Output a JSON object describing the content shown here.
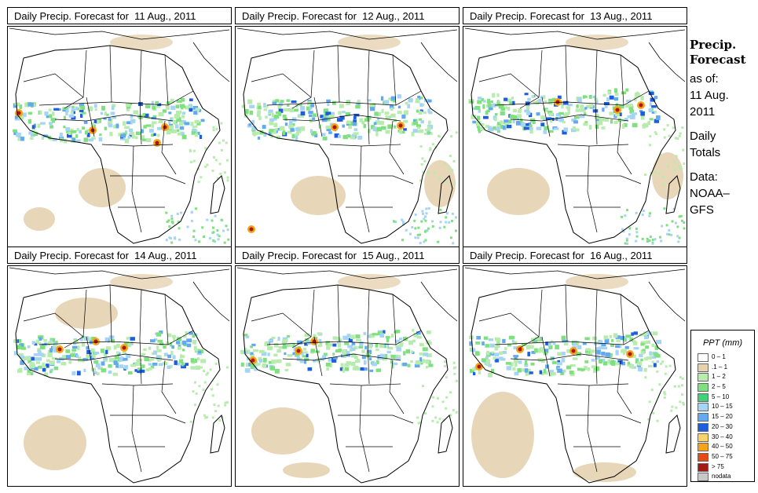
{
  "panels": [
    {
      "title": "Daily Precip. Forecast for  11 Aug., 2011"
    },
    {
      "title": "Daily Precip. Forecast for  12 Aug., 2011"
    },
    {
      "title": "Daily Precip. Forecast for  13 Aug., 2011"
    },
    {
      "title": "Daily Precip. Forecast for  14 Aug., 2011"
    },
    {
      "title": "Daily Precip. Forecast for  15 Aug., 2011"
    },
    {
      "title": "Daily Precip. Forecast for  16 Aug., 2011"
    }
  ],
  "side": {
    "title1": "Precip.",
    "title2": "Forecast",
    "asof": "as of:",
    "date1": "11 Aug.",
    "date2": "2011",
    "totals1": "Daily",
    "totals2": "Totals",
    "data1": "Data:",
    "data2": "NOAA–",
    "data3": "GFS"
  },
  "legend": {
    "title": "PPT (mm)",
    "items": [
      {
        "label": "0 – 1",
        "color": "#ffffff"
      },
      {
        "label": ".1 – 1",
        "color": "#e6d2b0"
      },
      {
        "label": "1 – 2",
        "color": "#b7ecae"
      },
      {
        "label": "2 – 5",
        "color": "#7fe07f"
      },
      {
        "label": "5 – 10",
        "color": "#3fd27a"
      },
      {
        "label": "10 – 15",
        "color": "#a6d4f5"
      },
      {
        "label": "15 – 20",
        "color": "#62a9f0"
      },
      {
        "label": "20 – 30",
        "color": "#1f5de0"
      },
      {
        "label": "30 – 40",
        "color": "#f9d46a"
      },
      {
        "label": "40 – 50",
        "color": "#f7a21b"
      },
      {
        "label": "50 – 75",
        "color": "#e84a16"
      },
      {
        "label": "> 75",
        "color": "#a51a12"
      },
      {
        "label": "nodata",
        "color": "#c8c8c8"
      }
    ]
  }
}
